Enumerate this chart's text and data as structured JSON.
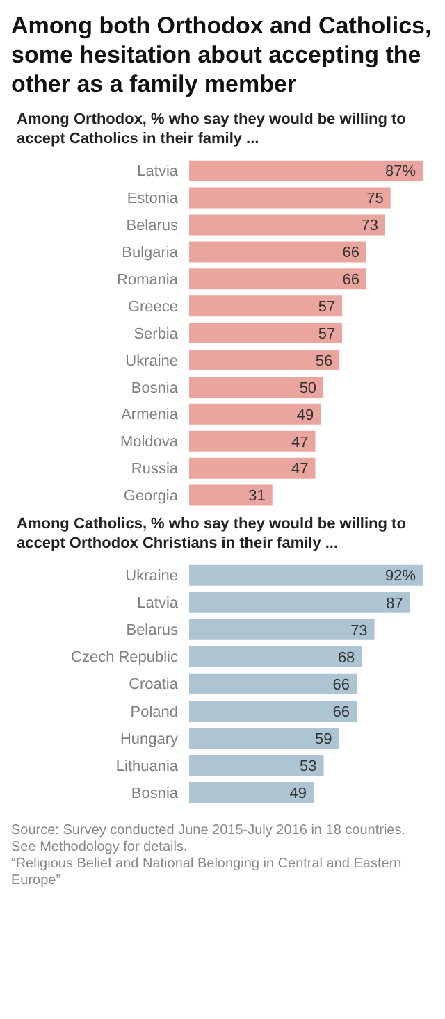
{
  "chart_data": [
    {
      "type": "bar",
      "orientation": "horizontal",
      "title": "Among both Orthodox and Catholics, some hesitation about accepting the other as a family member",
      "subtitle": "Among Orthodox, % who say they would be willing to accept Catholics in their family ...",
      "categories": [
        "Latvia",
        "Estonia",
        "Belarus",
        "Bulgaria",
        "Romania",
        "Greece",
        "Serbia",
        "Ukraine",
        "Bosnia",
        "Armenia",
        "Moldova",
        "Russia",
        "Georgia"
      ],
      "values": [
        87,
        75,
        73,
        66,
        66,
        57,
        57,
        56,
        50,
        49,
        47,
        47,
        31
      ],
      "value_labels": [
        "87%",
        "75",
        "73",
        "66",
        "66",
        "57",
        "57",
        "56",
        "50",
        "49",
        "47",
        "47",
        "31"
      ],
      "color": "#eba59f",
      "tick_labels": "y"
    },
    {
      "type": "bar",
      "orientation": "horizontal",
      "subtitle": "Among Catholics, % who say they would be willing to accept Orthodox Christians in their family ...",
      "categories": [
        "Ukraine",
        "Latvia",
        "Belarus",
        "Czech Republic",
        "Croatia",
        "Poland",
        "Hungary",
        "Lithuania",
        "Bosnia"
      ],
      "values": [
        92,
        87,
        73,
        68,
        66,
        66,
        59,
        53,
        49
      ],
      "value_labels": [
        "92%",
        "87",
        "73",
        "68",
        "66",
        "66",
        "59",
        "53",
        "49"
      ],
      "color": "#adc4d3",
      "tick_labels": "y",
      "annotations": [
        "Source: Survey conducted June 2015-July 2016 in 18 countries. See Methodology for details.",
        "“Religious Belief and National Belonging in Central and Eastern Europe”"
      ]
    }
  ]
}
